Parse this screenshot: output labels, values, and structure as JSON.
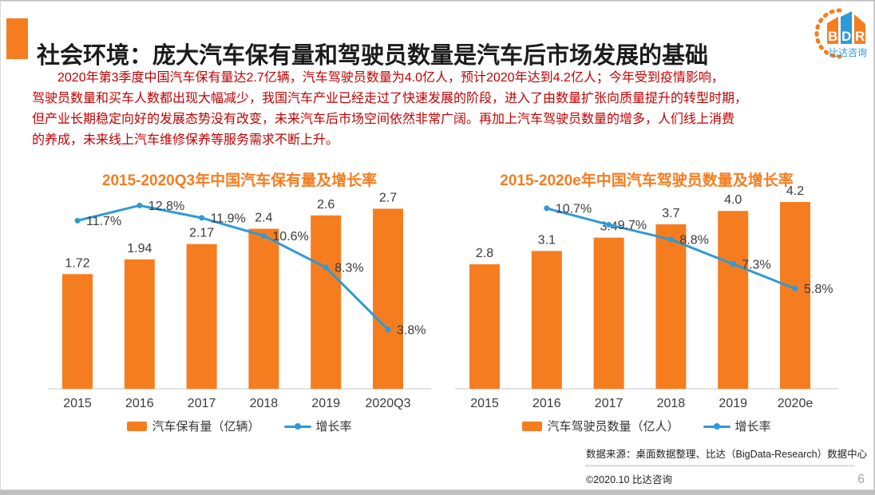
{
  "slide": {
    "title": "社会环境：庞大汽车保有量和驾驶员数量是汽车后市场发展的基础",
    "page_number": "6"
  },
  "logo": {
    "letters": [
      "B",
      "D",
      "R"
    ],
    "subtitle": "比达咨询"
  },
  "intro": {
    "lines": [
      "2020年第3季度中国汽车保有量达2.7亿辆，汽车驾驶员数量为4.0亿人，预计2020年达到4.2亿人；今年受到疫情影响，",
      "驾驶员数量和买车人数都出现大幅减少，我国汽车产业已经走过了快速发展的阶段，进入了由数量扩张向质量提升的转型时期，",
      "但产业长期稳定向好的发展态势没有改变，未来汽车后市场空间依然非常广阔。再加上汽车驾驶员数量的增多，人们线上消费",
      "的养成，未来线上汽车维修保养等服务需求不断上升。"
    ]
  },
  "colors": {
    "accent_orange": "#f57d20",
    "line_blue": "#2e9ad8",
    "paragraph_red": "#c00000",
    "axis_gray": "#d9d9d9",
    "label_dark": "#3a3a3a"
  },
  "chart_data": [
    {
      "type": "bar+line",
      "title": "2015-2020Q3年中国汽车保有量及增长率",
      "categories": [
        "2015",
        "2016",
        "2017",
        "2018",
        "2019",
        "2020Q3"
      ],
      "series": [
        {
          "name": "汽车保有量（亿辆）",
          "type": "bar",
          "color": "#f57d20",
          "values": [
            1.72,
            1.94,
            2.17,
            2.4,
            2.6,
            2.7
          ],
          "labels": [
            "1.72",
            "1.94",
            "2.17",
            "2.4",
            "2.6",
            "2.7"
          ]
        },
        {
          "name": "增长率",
          "type": "line",
          "color": "#2e9ad8",
          "values": [
            11.7,
            12.8,
            11.9,
            10.6,
            8.3,
            3.8
          ],
          "labels": [
            "11.7%",
            "12.8%",
            "11.9%",
            "10.6%",
            "8.3%",
            "3.8%"
          ]
        }
      ],
      "layout_hints": {
        "bar_ymax": 3.1,
        "line_ymin": -0.5,
        "line_ymax": 14.5,
        "grid": false,
        "legend_position": "bottom"
      }
    },
    {
      "type": "bar+line",
      "title": "2015-2020e年中国汽车驾驶员数量及增长率",
      "categories": [
        "2015",
        "2016",
        "2017",
        "2018",
        "2019",
        "2020e"
      ],
      "series": [
        {
          "name": "汽车驾驶员数量（亿人）",
          "type": "bar",
          "color": "#f57d20",
          "values": [
            2.8,
            3.1,
            3.4,
            3.7,
            4.0,
            4.2
          ],
          "labels": [
            "2.8",
            "3.1",
            "3.4",
            "3.7",
            "4.0",
            "4.2"
          ]
        },
        {
          "name": "增长率",
          "type": "line",
          "color": "#2e9ad8",
          "values": [
            null,
            10.7,
            9.7,
            8.8,
            7.3,
            5.8
          ],
          "labels": [
            null,
            "10.7%",
            "9.7%",
            "8.8%",
            "7.3%",
            "5.8%"
          ]
        }
      ],
      "layout_hints": {
        "bar_ymax": 4.65,
        "line_ymin": -0.3,
        "line_ymax": 12.3,
        "grid": false,
        "legend_position": "bottom"
      }
    }
  ],
  "footer": {
    "source": "数据来源：桌面数据整理、比达（BigData-Research）数据中心",
    "copyright": "©2020.10 比达咨询"
  }
}
